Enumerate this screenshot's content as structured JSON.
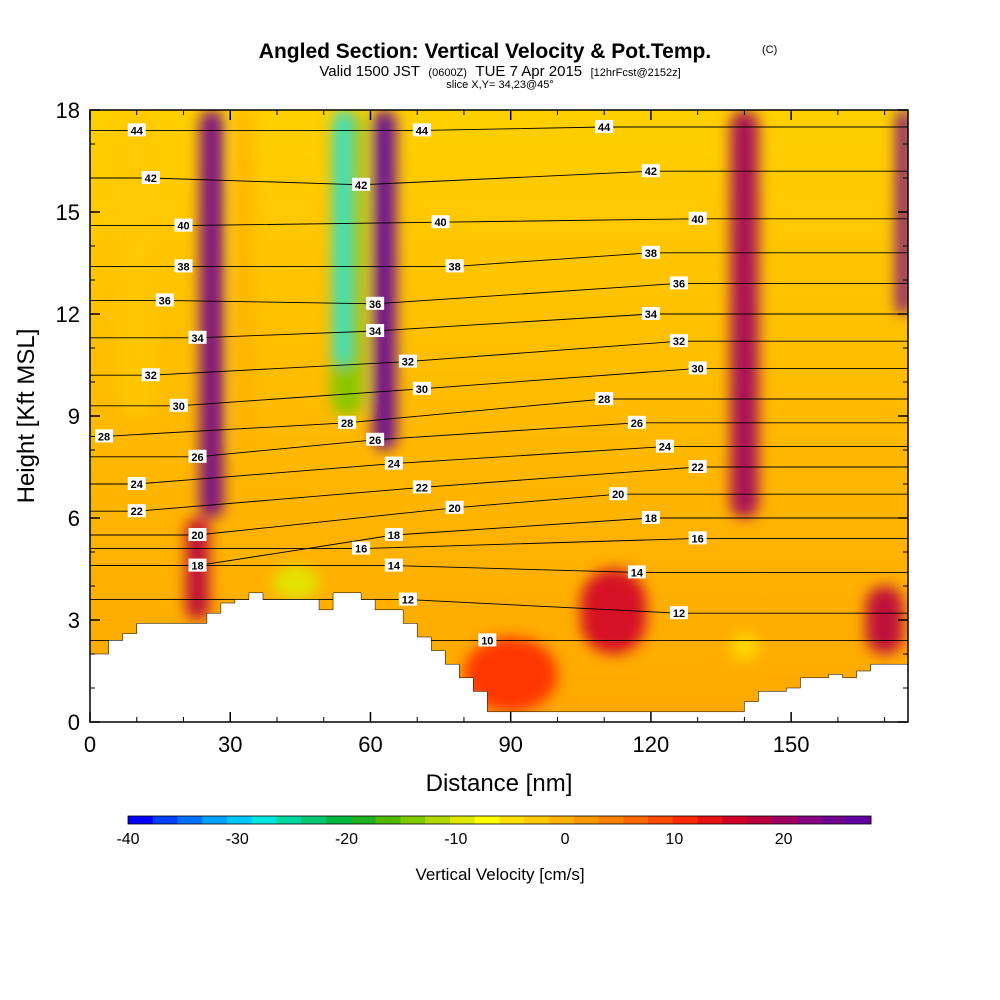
{
  "header": {
    "title": "Angled Section: Vertical Velocity & Pot.Temp.",
    "title_tag": "(C)",
    "valid_prefix": "Valid 1500 JST",
    "valid_utc": "(0600Z)",
    "valid_date": "TUE 7 Apr 2015",
    "forecast": "[12hrFcst@2152z]",
    "slice": "slice X,Y= 34,23@45°"
  },
  "chart_data": {
    "type": "heatmap",
    "title": "Angled Section: Vertical Velocity & Pot.Temp.",
    "xlabel": "Distance [nm]",
    "ylabel": "Height [Kft MSL]",
    "xlim": [
      0,
      175
    ],
    "ylim": [
      0,
      18
    ],
    "x_ticks": [
      0,
      30,
      60,
      90,
      120,
      150
    ],
    "x_tick_labels": [
      "0",
      "30",
      "60",
      "90",
      "120",
      "150"
    ],
    "y_ticks": [
      0,
      3,
      6,
      9,
      12,
      15,
      18
    ],
    "y_tick_labels": [
      "0",
      "3",
      "6",
      "9",
      "12",
      "15",
      "18"
    ],
    "colorbar": {
      "label": "Vertical Velocity [cm/s]",
      "range": [
        -40,
        28
      ],
      "step": 2,
      "tick_values": [
        -40,
        -30,
        -20,
        -10,
        0,
        10,
        20
      ],
      "tick_labels": [
        "-40",
        "-30",
        "-20",
        "-10",
        "0",
        "10",
        "20"
      ],
      "colors": [
        "#0000ff",
        "#0040ff",
        "#0070ff",
        "#00a0ff",
        "#00c8ff",
        "#00e8e0",
        "#00d8a0",
        "#00c870",
        "#00b840",
        "#20b020",
        "#50b800",
        "#80c800",
        "#b0d800",
        "#e0e800",
        "#ffff00",
        "#ffe000",
        "#ffc800",
        "#ffb000",
        "#ff9800",
        "#ff8000",
        "#ff6800",
        "#ff4800",
        "#ff2800",
        "#e81010",
        "#d00028",
        "#b80040",
        "#a00060",
        "#880080",
        "#700090",
        "#6000a0"
      ]
    },
    "terrain": {
      "x": [
        0,
        4,
        4,
        7,
        7,
        10,
        10,
        25,
        25,
        28,
        28,
        31,
        31,
        34,
        34,
        37,
        37,
        49,
        49,
        52,
        52,
        58,
        58,
        61,
        61,
        67,
        67,
        70,
        70,
        73,
        73,
        76,
        76,
        79,
        79,
        82,
        82,
        85,
        85,
        88,
        88,
        140,
        140,
        143,
        143,
        149,
        149,
        152,
        152,
        158,
        158,
        161,
        161,
        164,
        164,
        167,
        167,
        175
      ],
      "height": [
        2.0,
        2.0,
        2.4,
        2.4,
        2.6,
        2.6,
        2.9,
        2.9,
        3.2,
        3.2,
        3.5,
        3.5,
        3.6,
        3.6,
        3.8,
        3.8,
        3.6,
        3.6,
        3.3,
        3.3,
        3.8,
        3.8,
        3.6,
        3.6,
        3.3,
        3.3,
        2.9,
        2.9,
        2.5,
        2.5,
        2.1,
        2.1,
        1.7,
        1.7,
        1.3,
        1.3,
        0.9,
        0.9,
        0.3,
        0.3,
        0.3,
        0.3,
        0.6,
        0.6,
        0.9,
        0.9,
        1.0,
        1.0,
        1.3,
        1.3,
        1.4,
        1.4,
        1.3,
        1.3,
        1.5,
        1.5,
        1.7,
        1.7
      ]
    },
    "velocity_features": [
      {
        "x": 26,
        "y_from": 6,
        "y_to": 18,
        "width": 5,
        "value": 16
      },
      {
        "x": 23,
        "y_from": 3,
        "y_to": 6,
        "width": 5,
        "value": 10
      },
      {
        "x": 10,
        "y_from": 9,
        "y_to": 18,
        "width": 8,
        "value": -8
      },
      {
        "x": 33,
        "y_from": 8,
        "y_to": 18,
        "width": 3,
        "value": -6
      },
      {
        "x": 55,
        "y_from": 9,
        "y_to": 18,
        "width": 7,
        "value": -18
      },
      {
        "x": 54,
        "y_from": 10.5,
        "y_to": 18,
        "width": 3,
        "value": -30
      },
      {
        "x": 63,
        "y_from": 8,
        "y_to": 18,
        "width": 5,
        "value": 20
      },
      {
        "x": 44,
        "y_from": 3.6,
        "y_to": 4.6,
        "width": 10,
        "value": -14
      },
      {
        "x": 140,
        "y_from": 6,
        "y_to": 18,
        "width": 6,
        "value": 12
      },
      {
        "x": 174,
        "y_from": 12,
        "y_to": 18,
        "width": 3,
        "value": 16
      },
      {
        "x": 140,
        "y_from": 1.8,
        "y_to": 2.6,
        "width": 6,
        "value": -10
      },
      {
        "x": 112,
        "y_from": 2,
        "y_to": 4.5,
        "width": 14,
        "value": 8
      },
      {
        "x": 170,
        "y_from": 2,
        "y_to": 4,
        "width": 8,
        "value": 10
      },
      {
        "x": 90,
        "y_from": 0.3,
        "y_to": 2.5,
        "width": 20,
        "value": 4
      }
    ],
    "isentrope_labels": [
      {
        "value": "44",
        "x": 10,
        "y": 17.4
      },
      {
        "value": "42",
        "x": 13,
        "y": 16.0
      },
      {
        "value": "40",
        "x": 20,
        "y": 14.6
      },
      {
        "value": "38",
        "x": 20,
        "y": 13.4
      },
      {
        "value": "36",
        "x": 16,
        "y": 12.4
      },
      {
        "value": "34",
        "x": 23,
        "y": 11.3
      },
      {
        "value": "32",
        "x": 13,
        "y": 10.2
      },
      {
        "value": "30",
        "x": 19,
        "y": 9.3
      },
      {
        "value": "28",
        "x": 3,
        "y": 8.4
      },
      {
        "value": "26",
        "x": 23,
        "y": 7.8
      },
      {
        "value": "24",
        "x": 10,
        "y": 7.0
      },
      {
        "value": "22",
        "x": 10,
        "y": 6.2
      },
      {
        "value": "20",
        "x": 23,
        "y": 5.5
      },
      {
        "value": "18",
        "x": 23,
        "y": 4.6
      },
      {
        "value": "44",
        "x": 71,
        "y": 17.4
      },
      {
        "value": "42",
        "x": 58,
        "y": 15.8
      },
      {
        "value": "40",
        "x": 75,
        "y": 14.7
      },
      {
        "value": "38",
        "x": 78,
        "y": 13.4
      },
      {
        "value": "36",
        "x": 61,
        "y": 12.3
      },
      {
        "value": "34",
        "x": 61,
        "y": 11.5
      },
      {
        "value": "32",
        "x": 68,
        "y": 10.6
      },
      {
        "value": "30",
        "x": 71,
        "y": 9.8
      },
      {
        "value": "28",
        "x": 55,
        "y": 8.8
      },
      {
        "value": "26",
        "x": 61,
        "y": 8.3
      },
      {
        "value": "24",
        "x": 65,
        "y": 7.6
      },
      {
        "value": "22",
        "x": 71,
        "y": 6.9
      },
      {
        "value": "20",
        "x": 78,
        "y": 6.3
      },
      {
        "value": "18",
        "x": 65,
        "y": 5.5
      },
      {
        "value": "16",
        "x": 58,
        "y": 5.1
      },
      {
        "value": "14",
        "x": 65,
        "y": 4.6
      },
      {
        "value": "12",
        "x": 68,
        "y": 3.6
      },
      {
        "value": "10",
        "x": 85,
        "y": 2.4
      },
      {
        "value": "44",
        "x": 110,
        "y": 17.5
      },
      {
        "value": "42",
        "x": 120,
        "y": 16.2
      },
      {
        "value": "40",
        "x": 130,
        "y": 14.8
      },
      {
        "value": "38",
        "x": 120,
        "y": 13.8
      },
      {
        "value": "36",
        "x": 126,
        "y": 12.9
      },
      {
        "value": "34",
        "x": 120,
        "y": 12.0
      },
      {
        "value": "32",
        "x": 126,
        "y": 11.2
      },
      {
        "value": "30",
        "x": 130,
        "y": 10.4
      },
      {
        "value": "28",
        "x": 110,
        "y": 9.5
      },
      {
        "value": "26",
        "x": 117,
        "y": 8.8
      },
      {
        "value": "24",
        "x": 123,
        "y": 8.1
      },
      {
        "value": "22",
        "x": 130,
        "y": 7.5
      },
      {
        "value": "20",
        "x": 113,
        "y": 6.7
      },
      {
        "value": "18",
        "x": 120,
        "y": 6.0
      },
      {
        "value": "16",
        "x": 130,
        "y": 5.4
      },
      {
        "value": "14",
        "x": 117,
        "y": 4.4
      },
      {
        "value": "12",
        "x": 126,
        "y": 3.2
      }
    ]
  }
}
